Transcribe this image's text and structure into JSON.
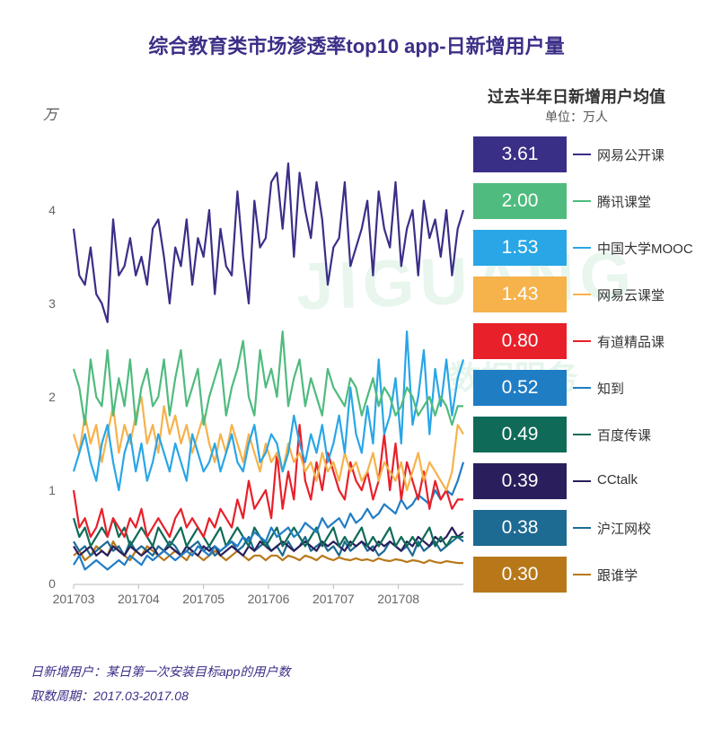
{
  "chart_data": {
    "type": "line",
    "title": "综合教育类市场渗透率top10 app-日新增用户量",
    "ylabel": "万",
    "ylim": [
      0,
      5
    ],
    "yticks": [
      "0",
      "1",
      "2",
      "3",
      "4"
    ],
    "xticks": [
      "201703",
      "201704",
      "201705",
      "201706",
      "201707",
      "201708"
    ],
    "legend_title": "过去半年日新增用户均值",
    "legend_unit": "单位：万人",
    "series": [
      {
        "name": "网易公开课",
        "avg": "3.61",
        "color": "#3a2f87",
        "values": [
          3.8,
          3.3,
          3.2,
          3.6,
          3.1,
          3.0,
          2.8,
          3.9,
          3.3,
          3.4,
          3.7,
          3.3,
          3.5,
          3.2,
          3.8,
          3.9,
          3.5,
          3.0,
          3.6,
          3.4,
          3.9,
          3.2,
          3.7,
          3.5,
          4.0,
          3.1,
          3.8,
          3.4,
          3.3,
          4.2,
          3.5,
          3.0,
          4.1,
          3.6,
          3.7,
          4.3,
          4.4,
          3.8,
          4.5,
          3.5,
          4.4,
          4.0,
          3.7,
          4.3,
          3.9,
          3.2,
          3.6,
          3.7,
          4.3,
          3.4,
          3.6,
          3.8,
          4.1,
          3.3,
          4.2,
          3.8,
          3.6,
          4.3,
          3.4,
          3.8,
          4.0,
          3.3,
          4.1,
          3.7,
          3.9,
          3.5,
          4.0,
          3.3,
          3.8,
          4.0
        ]
      },
      {
        "name": "腾讯课堂",
        "avg": "2.00",
        "color": "#4fbb7e",
        "values": [
          2.3,
          2.1,
          1.7,
          2.4,
          2.0,
          1.9,
          2.5,
          1.8,
          2.2,
          1.9,
          2.4,
          1.7,
          2.1,
          2.3,
          1.9,
          2.0,
          2.4,
          1.8,
          2.2,
          2.5,
          1.9,
          2.1,
          2.3,
          1.7,
          2.0,
          2.2,
          2.4,
          1.8,
          2.1,
          2.3,
          2.6,
          2.0,
          1.8,
          2.5,
          2.1,
          2.3,
          2.0,
          2.7,
          1.9,
          2.2,
          2.4,
          1.9,
          2.2,
          2.0,
          1.8,
          2.3,
          2.1,
          2.0,
          1.9,
          2.2,
          2.1,
          1.8,
          2.0,
          2.2,
          1.9,
          2.1,
          2.0,
          1.8,
          1.9,
          2.1,
          2.0,
          1.8,
          1.9,
          2.0,
          1.8,
          2.0,
          1.9,
          1.7,
          1.9,
          1.9
        ]
      },
      {
        "name": "中国大学MOOC",
        "avg": "1.53",
        "color": "#29a6e6",
        "values": [
          1.2,
          1.4,
          1.6,
          1.3,
          1.1,
          1.5,
          1.7,
          1.3,
          1.0,
          1.4,
          1.6,
          1.2,
          1.5,
          1.1,
          1.3,
          1.6,
          1.4,
          1.2,
          1.5,
          1.3,
          1.1,
          1.6,
          1.4,
          1.2,
          1.3,
          1.5,
          1.2,
          1.4,
          1.6,
          1.3,
          1.2,
          1.5,
          1.7,
          1.3,
          1.4,
          1.6,
          1.5,
          1.2,
          1.4,
          1.8,
          1.5,
          1.3,
          1.6,
          1.4,
          1.7,
          1.3,
          1.5,
          1.8,
          1.4,
          2.1,
          1.6,
          1.4,
          1.9,
          1.5,
          2.4,
          1.6,
          1.8,
          2.2,
          1.5,
          2.7,
          1.7,
          2.0,
          2.5,
          1.6,
          2.3,
          1.9,
          2.4,
          1.8,
          2.2,
          2.4
        ]
      },
      {
        "name": "网易云课堂",
        "avg": "1.43",
        "color": "#f6b24b",
        "values": [
          1.6,
          1.4,
          1.8,
          1.5,
          1.7,
          1.3,
          1.6,
          1.9,
          1.4,
          1.7,
          1.5,
          1.8,
          2.0,
          1.5,
          1.7,
          1.4,
          1.9,
          1.6,
          1.8,
          1.5,
          1.7,
          1.4,
          1.6,
          1.8,
          1.5,
          1.3,
          1.6,
          1.4,
          1.7,
          1.5,
          1.3,
          1.6,
          1.4,
          1.2,
          1.5,
          1.3,
          1.4,
          1.2,
          1.5,
          1.3,
          1.4,
          1.2,
          1.3,
          1.1,
          1.4,
          1.2,
          1.3,
          1.1,
          1.4,
          1.2,
          1.3,
          1.1,
          1.2,
          1.4,
          1.1,
          1.3,
          1.2,
          1.1,
          1.3,
          1.0,
          1.2,
          1.4,
          1.1,
          1.3,
          1.2,
          1.1,
          1.0,
          1.2,
          1.7,
          1.6
        ]
      },
      {
        "name": "有道精品课",
        "avg": "0.80",
        "color": "#e8202a",
        "values": [
          1.0,
          0.6,
          0.7,
          0.5,
          0.6,
          0.8,
          0.5,
          0.7,
          0.6,
          0.5,
          0.7,
          0.6,
          0.8,
          0.5,
          0.6,
          0.7,
          0.6,
          0.5,
          0.7,
          0.8,
          0.6,
          0.7,
          0.6,
          0.5,
          0.7,
          0.6,
          0.8,
          0.7,
          0.6,
          0.9,
          0.7,
          1.1,
          0.8,
          0.9,
          1.0,
          0.7,
          1.4,
          0.8,
          1.2,
          0.9,
          1.7,
          1.1,
          0.9,
          1.3,
          1.0,
          1.4,
          1.2,
          1.0,
          0.9,
          1.3,
          1.1,
          1.0,
          1.2,
          0.9,
          1.1,
          1.6,
          1.0,
          1.5,
          0.9,
          1.3,
          1.1,
          0.9,
          1.2,
          0.8,
          1.1,
          0.9,
          1.0,
          0.8,
          0.9,
          0.9
        ]
      },
      {
        "name": "知到",
        "avg": "0.52",
        "color": "#1f7dc4",
        "values": [
          0.2,
          0.3,
          0.15,
          0.2,
          0.25,
          0.2,
          0.15,
          0.2,
          0.25,
          0.2,
          0.3,
          0.25,
          0.2,
          0.3,
          0.25,
          0.3,
          0.35,
          0.3,
          0.25,
          0.3,
          0.35,
          0.3,
          0.4,
          0.35,
          0.3,
          0.4,
          0.35,
          0.4,
          0.45,
          0.4,
          0.5,
          0.45,
          0.55,
          0.5,
          0.45,
          0.6,
          0.5,
          0.55,
          0.6,
          0.5,
          0.55,
          0.65,
          0.6,
          0.55,
          0.7,
          0.6,
          0.65,
          0.7,
          0.6,
          0.75,
          0.65,
          0.7,
          0.8,
          0.7,
          0.75,
          0.85,
          0.8,
          0.75,
          0.9,
          0.8,
          0.85,
          0.95,
          0.9,
          0.85,
          1.0,
          0.9,
          1.0,
          0.95,
          1.1,
          1.3
        ]
      },
      {
        "name": "百度传课",
        "avg": "0.49",
        "color": "#0f6b58",
        "values": [
          0.7,
          0.5,
          0.6,
          0.4,
          0.5,
          0.6,
          0.5,
          0.7,
          0.5,
          0.6,
          0.4,
          0.5,
          0.6,
          0.5,
          0.4,
          0.6,
          0.5,
          0.4,
          0.5,
          0.6,
          0.4,
          0.5,
          0.6,
          0.5,
          0.4,
          0.5,
          0.6,
          0.4,
          0.5,
          0.6,
          0.5,
          0.4,
          0.6,
          0.5,
          0.4,
          0.5,
          0.6,
          0.4,
          0.5,
          0.6,
          0.5,
          0.4,
          0.5,
          0.6,
          0.4,
          0.5,
          0.6,
          0.4,
          0.5,
          0.4,
          0.5,
          0.6,
          0.4,
          0.5,
          0.4,
          0.5,
          0.6,
          0.4,
          0.5,
          0.4,
          0.5,
          0.4,
          0.5,
          0.6,
          0.4,
          0.5,
          0.4,
          0.5,
          0.5,
          0.5
        ]
      },
      {
        "name": "CCtalk",
        "avg": "0.39",
        "color": "#2a1f5c",
        "values": [
          0.4,
          0.3,
          0.35,
          0.4,
          0.3,
          0.35,
          0.3,
          0.4,
          0.35,
          0.3,
          0.4,
          0.35,
          0.3,
          0.35,
          0.4,
          0.3,
          0.35,
          0.4,
          0.35,
          0.3,
          0.4,
          0.35,
          0.3,
          0.4,
          0.35,
          0.4,
          0.3,
          0.35,
          0.4,
          0.35,
          0.3,
          0.4,
          0.35,
          0.45,
          0.4,
          0.35,
          0.4,
          0.45,
          0.4,
          0.35,
          0.4,
          0.45,
          0.4,
          0.35,
          0.45,
          0.4,
          0.45,
          0.4,
          0.35,
          0.45,
          0.4,
          0.45,
          0.4,
          0.35,
          0.45,
          0.4,
          0.45,
          0.4,
          0.35,
          0.45,
          0.4,
          0.5,
          0.45,
          0.4,
          0.5,
          0.45,
          0.5,
          0.6,
          0.5,
          0.55
        ]
      },
      {
        "name": "沪江网校",
        "avg": "0.38",
        "color": "#1d6a93",
        "values": [
          0.45,
          0.35,
          0.4,
          0.3,
          0.35,
          0.4,
          0.45,
          0.35,
          0.4,
          0.3,
          0.45,
          0.35,
          0.4,
          0.35,
          0.3,
          0.4,
          0.35,
          0.45,
          0.4,
          0.3,
          0.35,
          0.4,
          0.45,
          0.35,
          0.4,
          0.3,
          0.35,
          0.4,
          0.45,
          0.35,
          0.4,
          0.5,
          0.35,
          0.4,
          0.45,
          0.35,
          0.4,
          0.3,
          0.45,
          0.35,
          0.4,
          0.5,
          0.35,
          0.4,
          0.45,
          0.35,
          0.4,
          0.3,
          0.45,
          0.35,
          0.4,
          0.45,
          0.35,
          0.4,
          0.3,
          0.35,
          0.45,
          0.4,
          0.35,
          0.4,
          0.3,
          0.45,
          0.35,
          0.4,
          0.45,
          0.35,
          0.4,
          0.45,
          0.5,
          0.45
        ]
      },
      {
        "name": "跟谁学",
        "avg": "0.30",
        "color": "#b8781a",
        "values": [
          0.3,
          0.35,
          0.25,
          0.3,
          0.4,
          0.35,
          0.3,
          0.45,
          0.35,
          0.3,
          0.25,
          0.35,
          0.3,
          0.4,
          0.35,
          0.3,
          0.25,
          0.3,
          0.35,
          0.3,
          0.25,
          0.35,
          0.3,
          0.25,
          0.3,
          0.35,
          0.3,
          0.25,
          0.3,
          0.35,
          0.3,
          0.25,
          0.3,
          0.3,
          0.25,
          0.3,
          0.3,
          0.25,
          0.3,
          0.28,
          0.25,
          0.3,
          0.28,
          0.25,
          0.3,
          0.27,
          0.25,
          0.28,
          0.26,
          0.25,
          0.27,
          0.25,
          0.26,
          0.24,
          0.27,
          0.25,
          0.24,
          0.26,
          0.25,
          0.23,
          0.25,
          0.24,
          0.22,
          0.25,
          0.23,
          0.22,
          0.24,
          0.23,
          0.22,
          0.22
        ]
      }
    ]
  },
  "watermark": {
    "main": "JIGUANG",
    "sub": "数据服务"
  },
  "notes": {
    "line1": "日新增用户：某日第一次安装目标app的用户数",
    "line2": "取数周期：2017.03-2017.08"
  }
}
